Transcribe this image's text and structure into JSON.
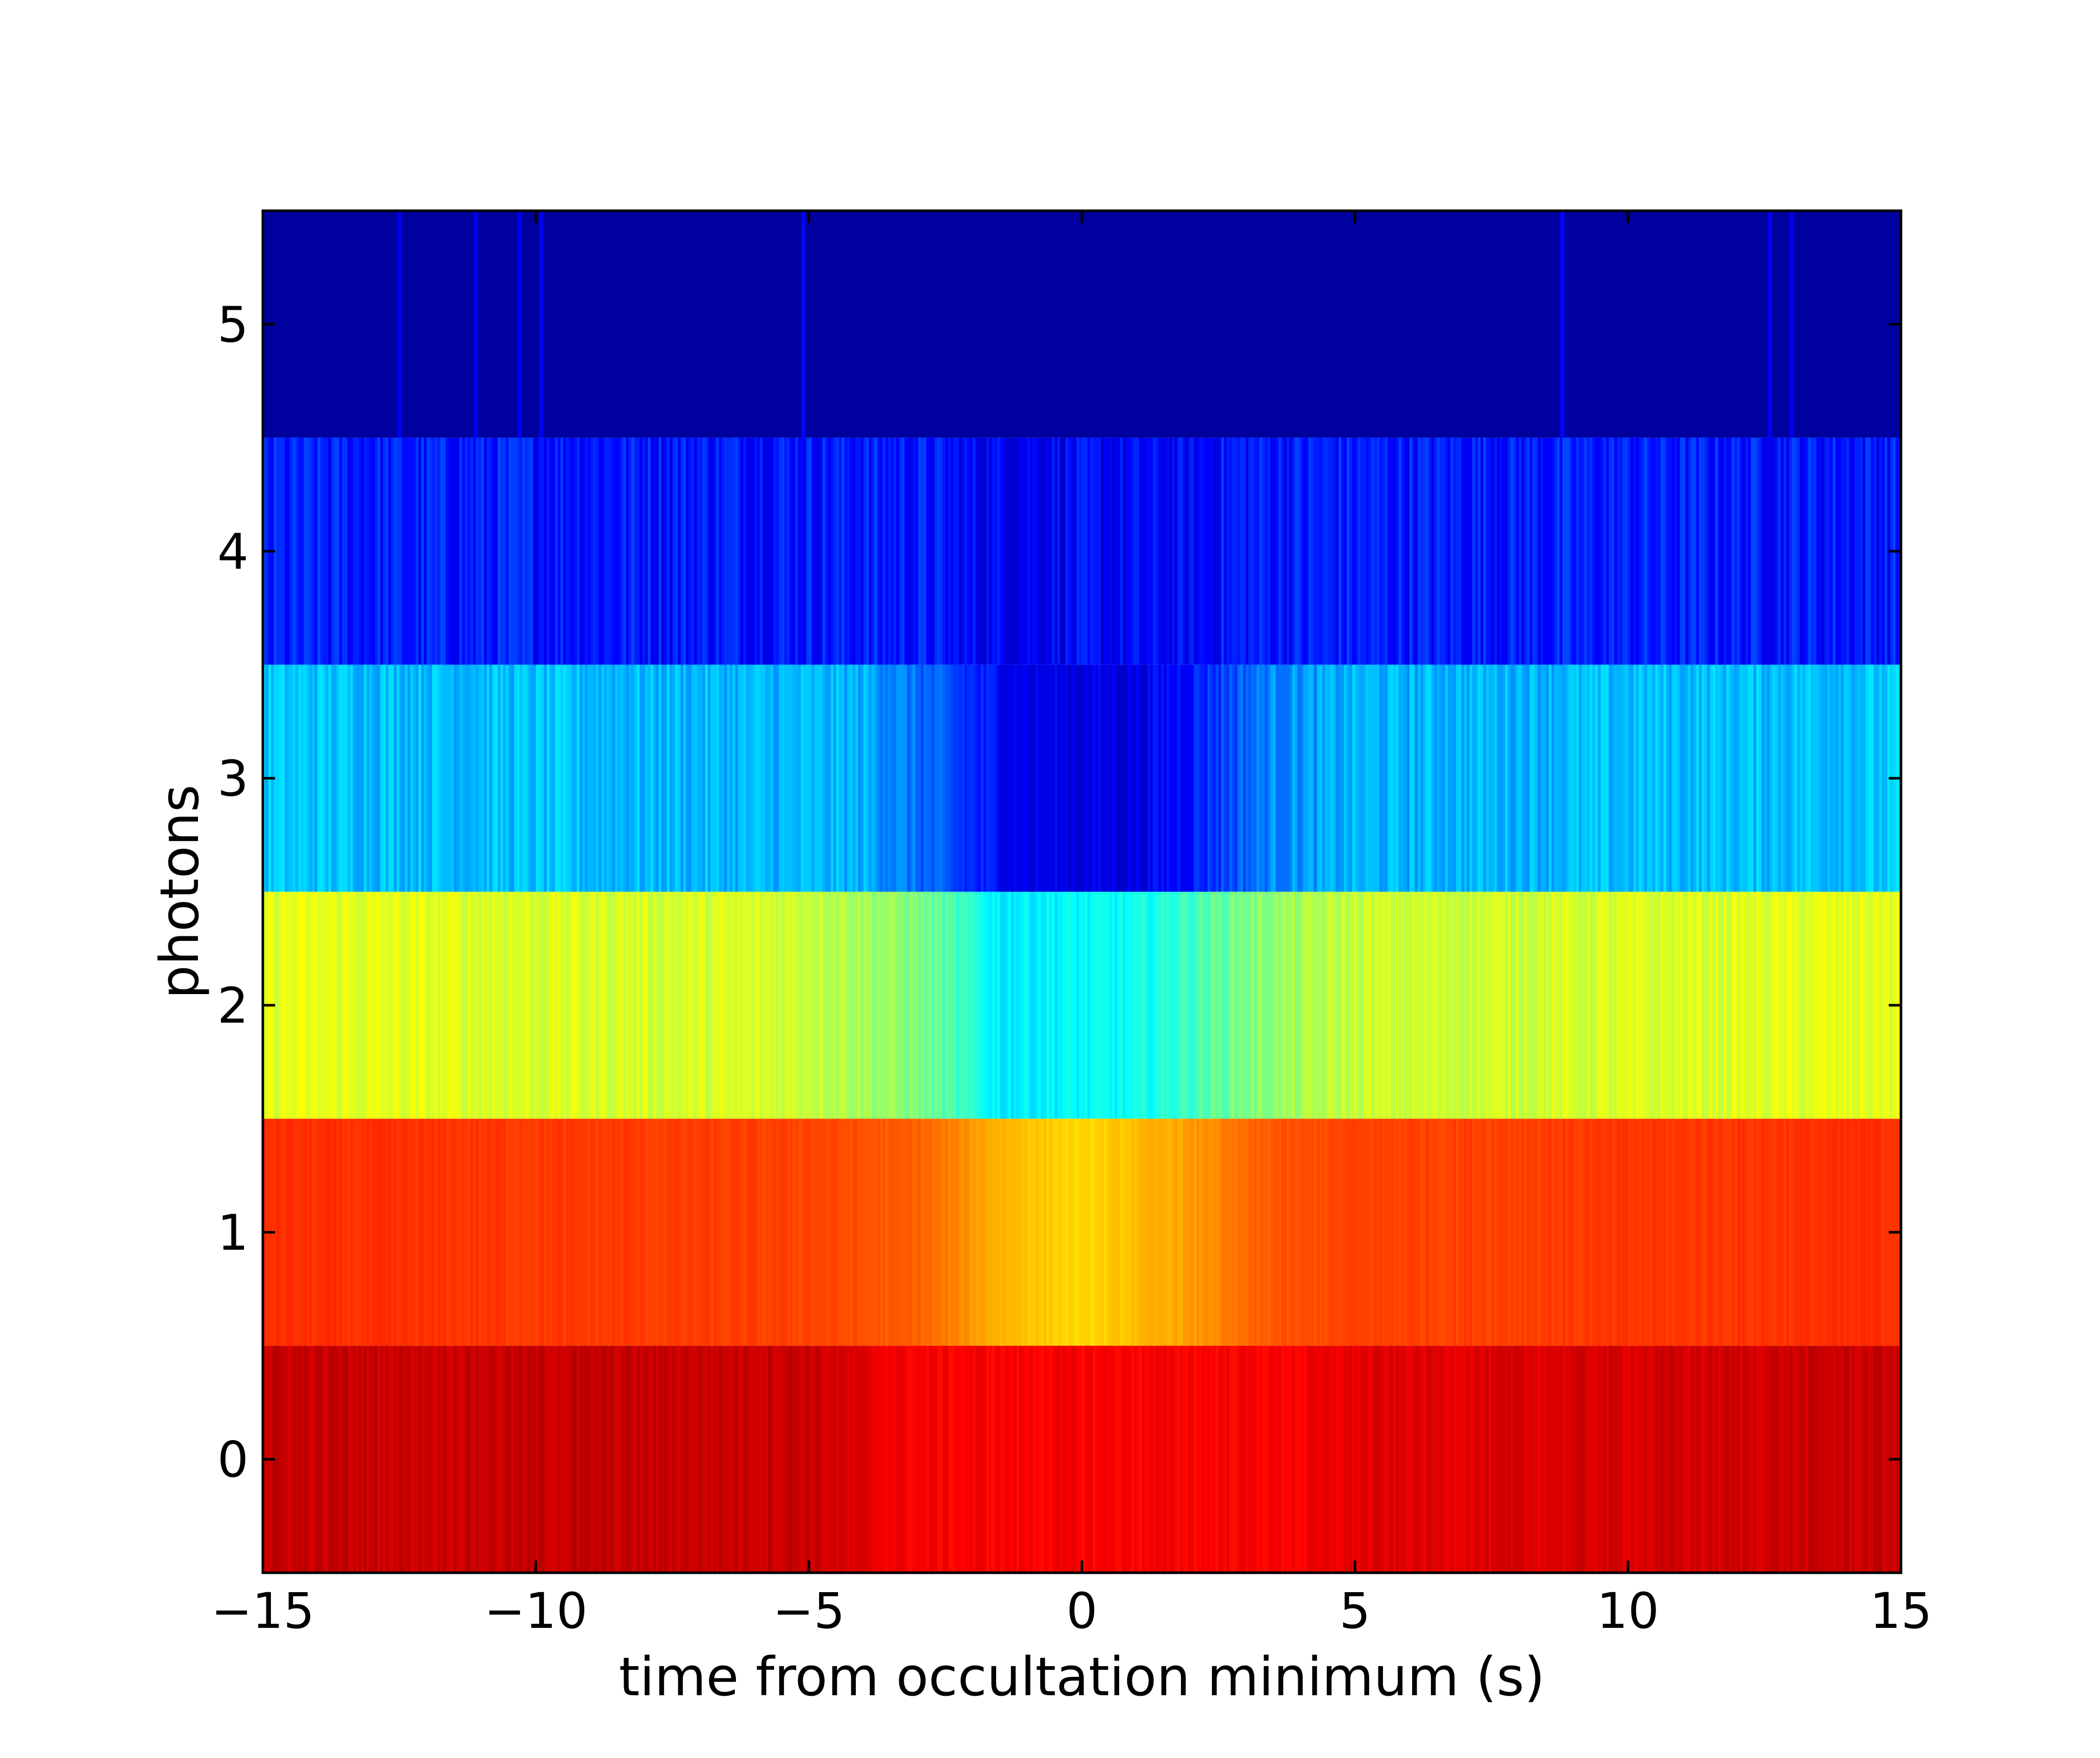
{
  "chart_data": {
    "type": "heatmap",
    "title": "",
    "xlabel": "time from occultation minimum (s)",
    "ylabel": "photons",
    "xlim": [
      -15,
      15
    ],
    "ylim": [
      -0.5,
      5.5
    ],
    "x_ticks": [
      -15,
      -10,
      -5,
      0,
      5,
      10,
      15
    ],
    "x_tick_labels": [
      "−15",
      "−10",
      "−5",
      "0",
      "5",
      "10",
      "15"
    ],
    "y_ticks": [
      0,
      1,
      2,
      3,
      4,
      5
    ],
    "y_tick_labels": [
      "0",
      "1",
      "2",
      "3",
      "4",
      "5"
    ],
    "colormap": "jet",
    "color_scale": [
      0,
      1
    ],
    "rows": [
      {
        "photons": 5,
        "level_profile": [
          [
            -15,
            0.03
          ],
          [
            15,
            0.03
          ]
        ],
        "noise": 0,
        "streaks": [
          {
            "t": -12.5,
            "level": 0.12
          },
          {
            "t": -11.1,
            "level": 0.11
          },
          {
            "t": -10.3,
            "level": 0.11
          },
          {
            "t": -9.9,
            "level": 0.11
          },
          {
            "t": -5.1,
            "level": 0.13
          },
          {
            "t": 8.8,
            "level": 0.13
          },
          {
            "t": 12.6,
            "level": 0.11
          },
          {
            "t": 13.0,
            "level": 0.11
          }
        ]
      },
      {
        "photons": 4,
        "level_profile": [
          [
            -15,
            0.15
          ],
          [
            -3,
            0.15
          ],
          [
            -2,
            0.12
          ],
          [
            2,
            0.12
          ],
          [
            3,
            0.15
          ],
          [
            15,
            0.15
          ]
        ],
        "noise": 0.05,
        "streaks": []
      },
      {
        "photons": 3,
        "level_profile": [
          [
            -15,
            0.32
          ],
          [
            -4,
            0.3
          ],
          [
            -2,
            0.16
          ],
          [
            -1,
            0.1
          ],
          [
            1,
            0.1
          ],
          [
            2,
            0.15
          ],
          [
            3.5,
            0.26
          ],
          [
            5,
            0.3
          ],
          [
            15,
            0.32
          ]
        ],
        "noise": 0.04,
        "streaks": []
      },
      {
        "photons": 2,
        "level_profile": [
          [
            -15,
            0.6
          ],
          [
            -5,
            0.58
          ],
          [
            -3,
            0.5
          ],
          [
            -1.5,
            0.36
          ],
          [
            1,
            0.38
          ],
          [
            3,
            0.5
          ],
          [
            5,
            0.57
          ],
          [
            15,
            0.6
          ]
        ],
        "noise": 0.03,
        "streaks": []
      },
      {
        "photons": 1,
        "level_profile": [
          [
            -15,
            0.83
          ],
          [
            -5,
            0.81
          ],
          [
            -3,
            0.78
          ],
          [
            -1.5,
            0.7
          ],
          [
            0,
            0.66
          ],
          [
            2,
            0.72
          ],
          [
            3.5,
            0.79
          ],
          [
            5,
            0.81
          ],
          [
            15,
            0.83
          ]
        ],
        "noise": 0.012,
        "streaks": []
      },
      {
        "photons": 0,
        "level_profile": [
          [
            -15,
            0.93
          ],
          [
            -5,
            0.93
          ],
          [
            -4,
            0.9
          ],
          [
            -3,
            0.88
          ],
          [
            4,
            0.88
          ],
          [
            5,
            0.9
          ],
          [
            15,
            0.93
          ]
        ],
        "noise": 0.02,
        "streaks": []
      }
    ]
  }
}
